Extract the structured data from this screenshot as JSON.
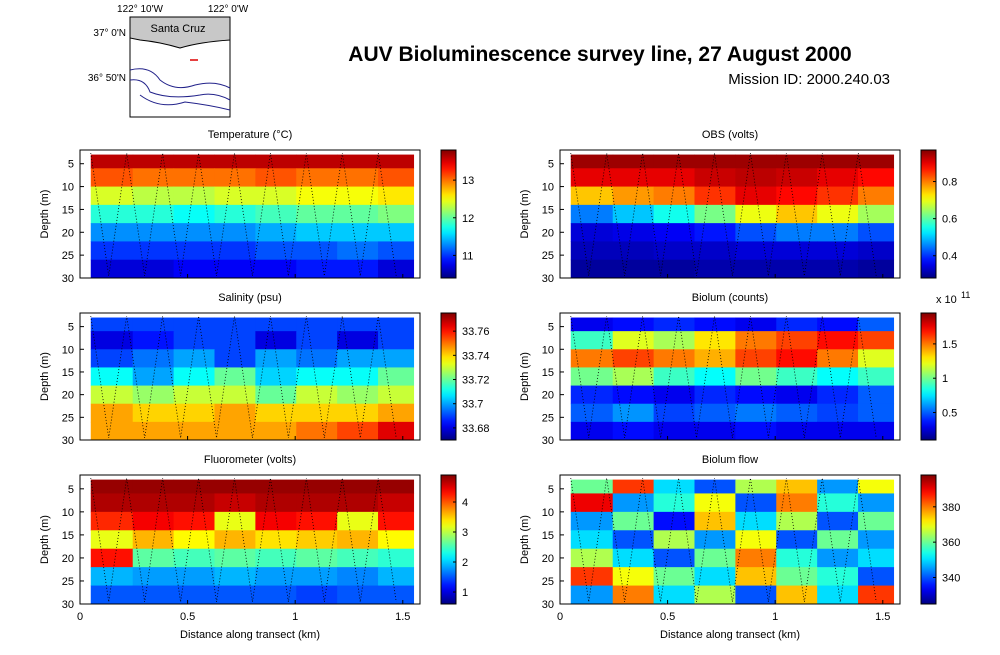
{
  "header": {
    "title": "AUV Bioluminescence survey line, 27 August 2000",
    "mission": "Mission ID: 2000.240.03"
  },
  "map": {
    "lon_labels": [
      "122° 10'W",
      "122° 0'W"
    ],
    "lat_labels": [
      "37° 0'N",
      "36° 50'N"
    ],
    "place": "Santa Cruz"
  },
  "chart_data": [
    {
      "type": "heatmap",
      "title": "Temperature (°C)",
      "ylabel": "Depth (m)",
      "xlabel": null,
      "xlim": [
        0,
        1.58
      ],
      "ylim": [
        2,
        30
      ],
      "xticks": [
        0,
        0.5,
        1,
        1.5
      ],
      "yticks": [
        5,
        10,
        15,
        20,
        25,
        30
      ],
      "x": [
        0.15,
        0.34,
        0.53,
        0.72,
        0.91,
        1.1,
        1.29,
        1.48
      ],
      "depth": [
        4,
        8,
        12,
        16,
        20,
        24,
        28
      ],
      "clim": [
        10.4,
        13.8
      ],
      "cticks": [
        11,
        12,
        13
      ],
      "field": [
        [
          13.6,
          13.6,
          13.6,
          13.6,
          13.6,
          13.6,
          13.6,
          13.6
        ],
        [
          13.1,
          13,
          13,
          13,
          13.1,
          13,
          13,
          13.1
        ],
        [
          12.4,
          12.3,
          12.3,
          12.4,
          12.4,
          12.5,
          12.5,
          12.6
        ],
        [
          11.8,
          11.8,
          11.7,
          11.8,
          11.9,
          12,
          12,
          12.1
        ],
        [
          11.3,
          11.3,
          11.3,
          11.3,
          11.4,
          11.5,
          11.5,
          11.5
        ],
        [
          11,
          11,
          11,
          11,
          11.1,
          11.1,
          11.2,
          11.1
        ],
        [
          10.7,
          10.7,
          10.8,
          10.8,
          10.8,
          10.9,
          10.9,
          10.7
        ]
      ]
    },
    {
      "type": "heatmap",
      "title": "OBS (volts)",
      "ylabel": "Depth (m)",
      "xlabel": null,
      "xlim": [
        0,
        1.58
      ],
      "ylim": [
        2,
        30
      ],
      "xticks": [
        0,
        0.5,
        1,
        1.5
      ],
      "yticks": [
        5,
        10,
        15,
        20,
        25,
        30
      ],
      "x": [
        0.15,
        0.34,
        0.53,
        0.72,
        0.91,
        1.1,
        1.29,
        1.48
      ],
      "depth": [
        4,
        8,
        12,
        16,
        20,
        24,
        28
      ],
      "clim": [
        0.28,
        0.97
      ],
      "cticks": [
        0.4,
        0.6,
        0.8
      ],
      "field": [
        [
          0.95,
          0.95,
          0.95,
          0.95,
          0.95,
          0.95,
          0.95,
          0.95
        ],
        [
          0.9,
          0.9,
          0.9,
          0.92,
          0.93,
          0.92,
          0.9,
          0.88
        ],
        [
          0.75,
          0.78,
          0.8,
          0.85,
          0.9,
          0.88,
          0.85,
          0.8
        ],
        [
          0.45,
          0.5,
          0.55,
          0.62,
          0.7,
          0.75,
          0.7,
          0.65
        ],
        [
          0.34,
          0.35,
          0.36,
          0.38,
          0.42,
          0.45,
          0.45,
          0.42
        ],
        [
          0.32,
          0.32,
          0.33,
          0.33,
          0.34,
          0.34,
          0.34,
          0.33
        ],
        [
          0.3,
          0.3,
          0.3,
          0.31,
          0.31,
          0.31,
          0.31,
          0.3
        ]
      ]
    },
    {
      "type": "heatmap",
      "title": "Salinity (psu)",
      "ylabel": "Depth (m)",
      "xlabel": null,
      "xlim": [
        0,
        1.58
      ],
      "ylim": [
        2,
        30
      ],
      "xticks": [
        0,
        0.5,
        1,
        1.5
      ],
      "yticks": [
        5,
        10,
        15,
        20,
        25,
        30
      ],
      "x": [
        0.15,
        0.34,
        0.53,
        0.72,
        0.91,
        1.1,
        1.29,
        1.48
      ],
      "depth": [
        4,
        8,
        12,
        16,
        20,
        24,
        28
      ],
      "clim": [
        33.67,
        33.775
      ],
      "cticks": [
        33.68,
        33.7,
        33.72,
        33.74,
        33.76
      ],
      "field": [
        [
          33.69,
          33.69,
          33.69,
          33.69,
          33.69,
          33.69,
          33.69,
          33.69
        ],
        [
          33.68,
          33.685,
          33.69,
          33.69,
          33.68,
          33.69,
          33.68,
          33.69
        ],
        [
          33.69,
          33.695,
          33.7,
          33.69,
          33.7,
          33.695,
          33.7,
          33.7
        ],
        [
          33.71,
          33.7,
          33.71,
          33.72,
          33.705,
          33.71,
          33.71,
          33.72
        ],
        [
          33.73,
          33.725,
          33.73,
          33.73,
          33.72,
          33.73,
          33.725,
          33.73
        ],
        [
          33.745,
          33.74,
          33.74,
          33.745,
          33.74,
          33.74,
          33.74,
          33.745
        ],
        [
          33.745,
          33.745,
          33.745,
          33.745,
          33.745,
          33.75,
          33.755,
          33.765
        ]
      ]
    },
    {
      "type": "heatmap",
      "title": "Biolum (counts)",
      "ylabel": "Depth (m)",
      "xlabel": null,
      "cbar_scale": "x 10",
      "cbar_power": "11",
      "xlim": [
        0,
        1.58
      ],
      "ylim": [
        2,
        30
      ],
      "xticks": [
        0,
        0.5,
        1,
        1.5
      ],
      "yticks": [
        5,
        10,
        15,
        20,
        25,
        30
      ],
      "x": [
        0.15,
        0.34,
        0.53,
        0.72,
        0.91,
        1.1,
        1.29,
        1.48
      ],
      "depth": [
        4,
        8,
        12,
        16,
        20,
        24,
        28
      ],
      "clim": [
        0.1,
        1.95
      ],
      "cticks": [
        0.5,
        1,
        1.5
      ],
      "field": [
        [
          0.3,
          0.35,
          0.4,
          0.35,
          0.3,
          0.4,
          0.35,
          0.5
        ],
        [
          0.9,
          1.2,
          1.1,
          1.3,
          1.5,
          1.6,
          1.7,
          1.6
        ],
        [
          1.5,
          1.6,
          1.5,
          1.4,
          1.6,
          1.7,
          1.5,
          1.2
        ],
        [
          1.0,
          1.1,
          0.9,
          0.8,
          1.0,
          0.9,
          0.8,
          0.9
        ],
        [
          0.4,
          0.35,
          0.3,
          0.4,
          0.35,
          0.3,
          0.4,
          0.5
        ],
        [
          0.5,
          0.6,
          0.45,
          0.5,
          0.55,
          0.5,
          0.45,
          0.5
        ],
        [
          0.3,
          0.35,
          0.3,
          0.3,
          0.35,
          0.3,
          0.3,
          0.3
        ]
      ]
    },
    {
      "type": "heatmap",
      "title": "Fluorometer (volts)",
      "ylabel": "Depth (m)",
      "xlabel": "Distance along transect (km)",
      "xlim": [
        0,
        1.58
      ],
      "ylim": [
        2,
        30
      ],
      "xticks": [
        0,
        0.5,
        1,
        1.5
      ],
      "yticks": [
        5,
        10,
        15,
        20,
        25,
        30
      ],
      "x": [
        0.15,
        0.34,
        0.53,
        0.72,
        0.91,
        1.1,
        1.29,
        1.48
      ],
      "depth": [
        4,
        8,
        12,
        16,
        20,
        24,
        28
      ],
      "clim": [
        0.6,
        4.9
      ],
      "cticks": [
        1,
        2,
        3,
        4
      ],
      "field": [
        [
          4.8,
          4.8,
          4.8,
          4.8,
          4.8,
          4.8,
          4.8,
          4.8
        ],
        [
          4.7,
          4.7,
          4.7,
          4.6,
          4.7,
          4.7,
          4.7,
          4.6
        ],
        [
          4.2,
          4.4,
          4.3,
          3.2,
          4.4,
          4.3,
          3.2,
          4.3
        ],
        [
          3.2,
          3.6,
          3.3,
          3.6,
          3.4,
          3.5,
          3.6,
          3.3
        ],
        [
          4.3,
          2.6,
          2.5,
          2.6,
          2.5,
          2.6,
          2.5,
          2.4
        ],
        [
          1.9,
          1.8,
          1.8,
          1.9,
          1.8,
          1.8,
          1.7,
          1.9
        ],
        [
          1.5,
          1.5,
          1.5,
          1.5,
          1.5,
          1.4,
          1.5,
          1.5
        ]
      ]
    },
    {
      "type": "heatmap",
      "title": "Biolum flow",
      "ylabel": "Depth (m)",
      "xlabel": "Distance along transect (km)",
      "xlim": [
        0,
        1.58
      ],
      "ylim": [
        2,
        30
      ],
      "xticks": [
        0,
        0.5,
        1,
        1.5
      ],
      "yticks": [
        5,
        10,
        15,
        20,
        25,
        30
      ],
      "x": [
        0.15,
        0.34,
        0.53,
        0.72,
        0.91,
        1.1,
        1.29,
        1.48
      ],
      "depth": [
        4,
        8,
        12,
        16,
        20,
        24,
        28
      ],
      "clim": [
        325,
        398
      ],
      "cticks": [
        340,
        360,
        380
      ],
      "field": [
        [
          360,
          385,
          350,
          340,
          365,
          375,
          345,
          370
        ],
        [
          390,
          345,
          355,
          370,
          340,
          380,
          355,
          345
        ],
        [
          345,
          360,
          335,
          375,
          350,
          365,
          340,
          360
        ],
        [
          350,
          340,
          365,
          345,
          370,
          340,
          360,
          345
        ],
        [
          365,
          350,
          340,
          360,
          380,
          355,
          345,
          350
        ],
        [
          385,
          370,
          360,
          350,
          375,
          360,
          355,
          340
        ],
        [
          345,
          380,
          350,
          365,
          340,
          375,
          350,
          385
        ]
      ]
    }
  ]
}
